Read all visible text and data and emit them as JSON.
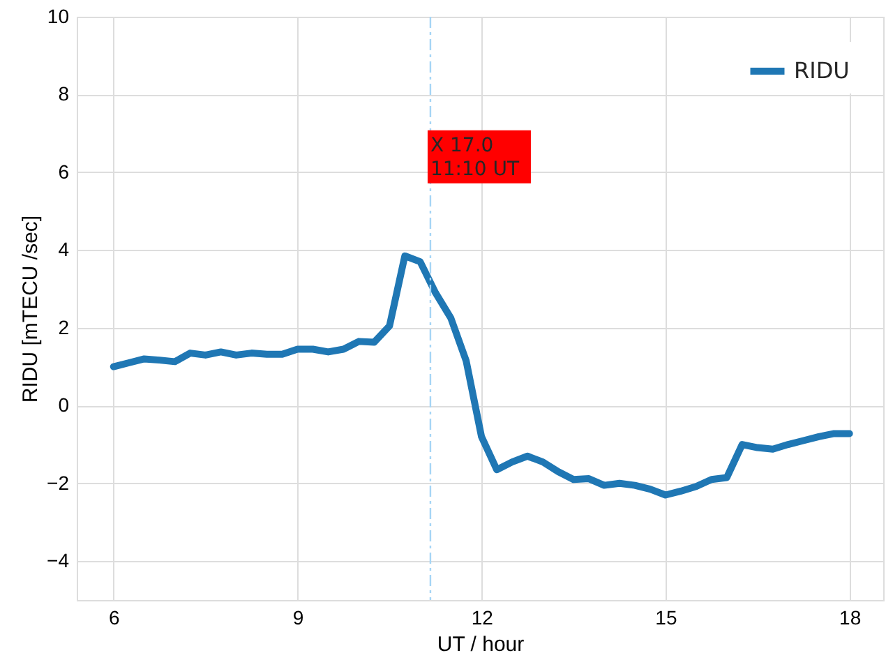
{
  "chart_data": {
    "type": "line",
    "xlabel": "UT / hour",
    "ylabel": "RIDU [mTECU /sec]",
    "x": [
      6.0,
      6.25,
      6.5,
      6.75,
      7.0,
      7.25,
      7.5,
      7.75,
      8.0,
      8.25,
      8.5,
      8.75,
      9.0,
      9.25,
      9.5,
      9.75,
      10.0,
      10.25,
      10.5,
      10.75,
      11.0,
      11.25,
      11.5,
      11.75,
      12.0,
      12.25,
      12.5,
      12.75,
      13.0,
      13.25,
      13.5,
      13.75,
      14.0,
      14.25,
      14.5,
      14.75,
      15.0,
      15.25,
      15.5,
      15.75,
      16.0,
      16.25,
      16.5,
      16.75,
      17.0,
      17.25,
      17.5,
      17.75,
      18.0
    ],
    "series": [
      {
        "name": "RIDU",
        "color": "#1f77b4",
        "values": [
          1.0,
          1.1,
          1.2,
          1.17,
          1.13,
          1.35,
          1.3,
          1.38,
          1.3,
          1.35,
          1.32,
          1.32,
          1.45,
          1.45,
          1.38,
          1.45,
          1.65,
          1.63,
          2.05,
          3.85,
          3.7,
          2.9,
          2.25,
          1.15,
          -0.8,
          -1.65,
          -1.45,
          -1.3,
          -1.45,
          -1.7,
          -1.9,
          -1.88,
          -2.05,
          -2.0,
          -2.05,
          -2.15,
          -2.3,
          -2.2,
          -2.08,
          -1.9,
          -1.85,
          -1.0,
          -1.08,
          -1.12,
          -1.0,
          -0.9,
          -0.8,
          -0.72,
          -0.72
        ]
      }
    ],
    "xlim": [
      5.4,
      18.55
    ],
    "xticks": [
      6,
      9,
      12,
      15,
      18
    ],
    "ylim": [
      -5,
      10
    ],
    "yticks": [
      -4,
      -2,
      0,
      2,
      4,
      6,
      8,
      10
    ],
    "ref_lines": [
      {
        "axis": "x",
        "value": 11.1667,
        "color": "#a6d5f5",
        "line_style": "dashed"
      }
    ],
    "annotations": [
      {
        "text": "X 17.0\n11:10 UT",
        "x": 11.1667,
        "y": 6.4
      }
    ],
    "grid": true,
    "legend": "top right",
    "marker": "none",
    "line_style": "solid"
  }
}
